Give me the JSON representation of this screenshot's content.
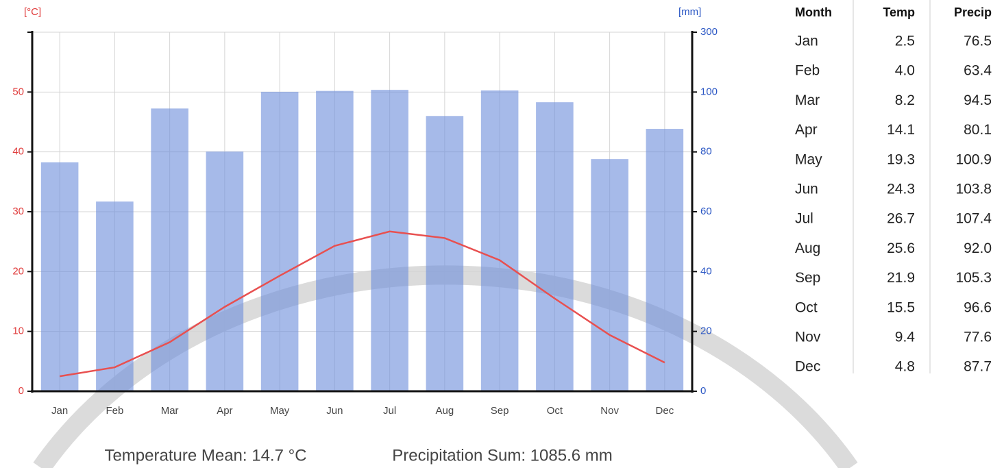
{
  "chart_data": {
    "type": "combo",
    "y_label": "[°C]",
    "y2_label": "[mm]",
    "categories": [
      "Jan",
      "Feb",
      "Mar",
      "Apr",
      "May",
      "Jun",
      "Jul",
      "Aug",
      "Sep",
      "Oct",
      "Nov",
      "Dec"
    ],
    "series": [
      {
        "type": "bar",
        "axis": "y2",
        "color": "#6f8fdc",
        "values": [
          76.5,
          63.4,
          94.5,
          80.1,
          100.9,
          103.8,
          107.4,
          92.0,
          105.3,
          96.6,
          77.6,
          87.7
        ]
      },
      {
        "type": "line",
        "color": "#e85050",
        "values": [
          2.5,
          4.0,
          8.2,
          14.1,
          19.3,
          24.3,
          26.7,
          25.6,
          21.9,
          15.5,
          9.4,
          4.8
        ]
      }
    ],
    "ylim": [
      0,
      60
    ],
    "yticks": [
      0,
      10,
      20,
      30,
      40,
      50
    ],
    "y2lim": [
      0,
      300
    ],
    "y2ticks": [
      0,
      20,
      40,
      60,
      80,
      100,
      300
    ],
    "grid": true,
    "footer": [
      "Temperature Mean: 14.7 °C",
      "Precipitation Sum: 1085.6 mm"
    ]
  },
  "table": {
    "header": [
      "Month",
      "Temp",
      "Precip"
    ],
    "rows": [
      [
        "Jan",
        "2.5",
        "76.5"
      ],
      [
        "Feb",
        "4.0",
        "63.4"
      ],
      [
        "Mar",
        "8.2",
        "94.5"
      ],
      [
        "Apr",
        "14.1",
        "80.1"
      ],
      [
        "May",
        "19.3",
        "100.9"
      ],
      [
        "Jun",
        "24.3",
        "103.8"
      ],
      [
        "Jul",
        "26.7",
        "107.4"
      ],
      [
        "Aug",
        "25.6",
        "92.0"
      ],
      [
        "Sep",
        "21.9",
        "105.3"
      ],
      [
        "Oct",
        "15.5",
        "96.6"
      ],
      [
        "Nov",
        "9.4",
        "77.6"
      ],
      [
        "Dec",
        "4.8",
        "87.7"
      ]
    ]
  }
}
